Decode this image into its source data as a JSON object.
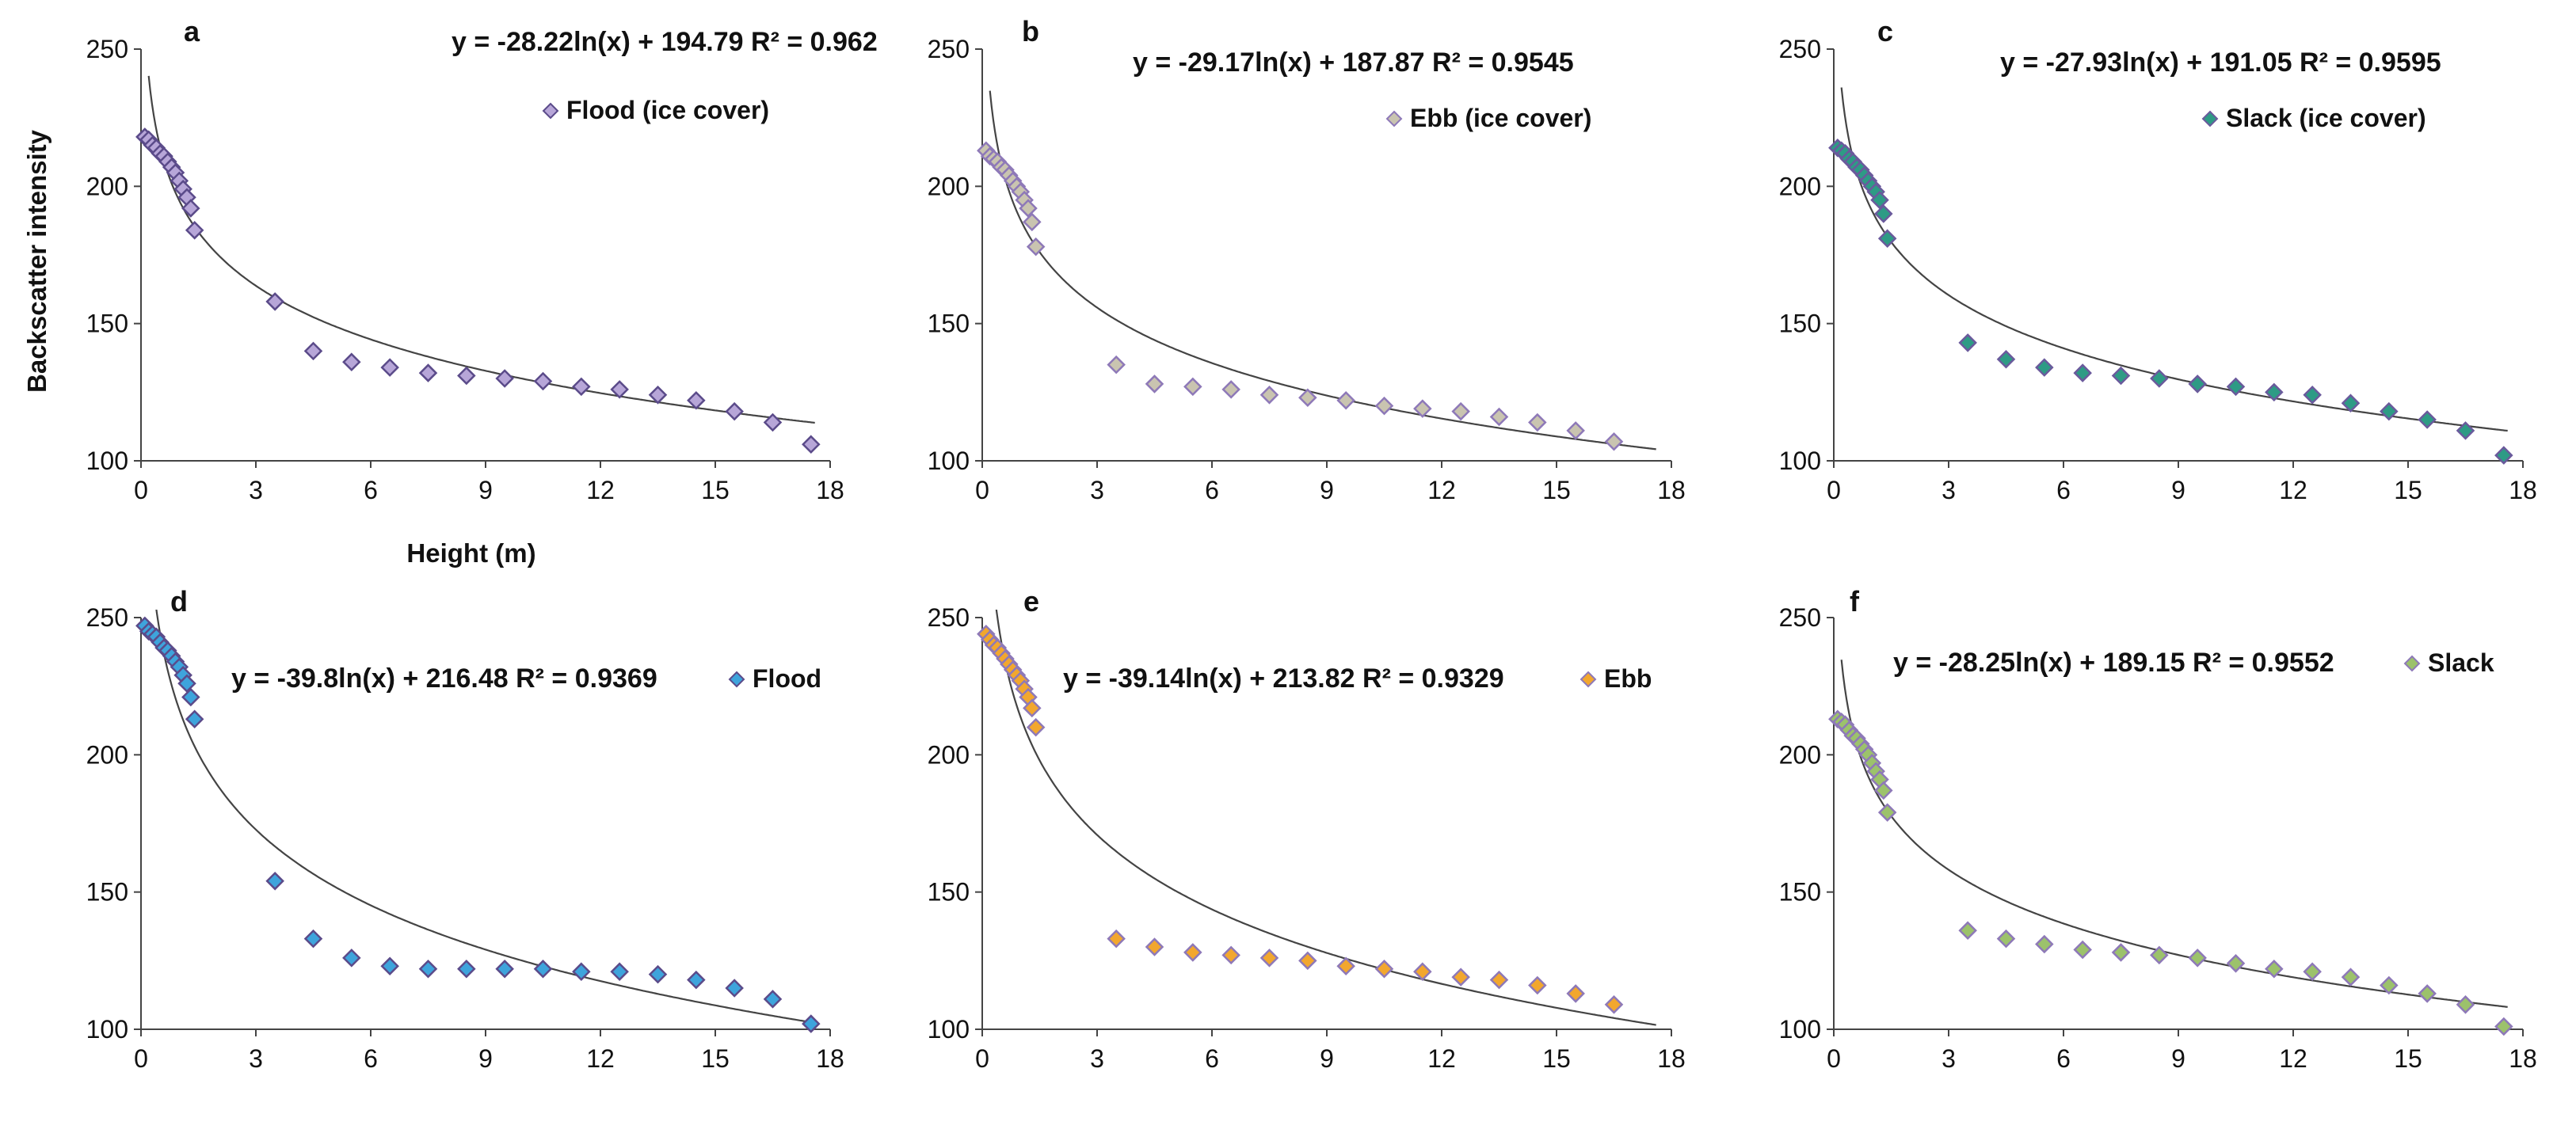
{
  "figure": {
    "xlabel": "Height  (m)",
    "ylabel": "Backscatter intensity"
  },
  "chart_data": [
    {
      "type": "scatter",
      "panel": "a",
      "equation": "y = -28.22ln(x) + 194.79  R² = 0.962",
      "fit": {
        "a": -28.22,
        "b": 194.79
      },
      "series": [
        {
          "name": "Flood (ice cover)",
          "fill": "#b7a6d8",
          "stroke": "#5b4b8a",
          "points": [
            [
              0.1,
              218
            ],
            [
              0.2,
              217
            ],
            [
              0.3,
              215
            ],
            [
              0.4,
              214
            ],
            [
              0.5,
              212
            ],
            [
              0.6,
              211
            ],
            [
              0.7,
              209
            ],
            [
              0.8,
              207
            ],
            [
              0.9,
              205
            ],
            [
              1.0,
              202
            ],
            [
              1.1,
              199
            ],
            [
              1.2,
              196
            ],
            [
              1.3,
              192
            ],
            [
              1.4,
              184
            ],
            [
              3.5,
              158
            ],
            [
              4.5,
              140
            ],
            [
              5.5,
              136
            ],
            [
              6.5,
              134
            ],
            [
              7.5,
              132
            ],
            [
              8.5,
              131
            ],
            [
              9.5,
              130
            ],
            [
              10.5,
              129
            ],
            [
              11.5,
              127
            ],
            [
              12.5,
              126
            ],
            [
              13.5,
              124
            ],
            [
              14.5,
              122
            ],
            [
              15.5,
              118
            ],
            [
              16.5,
              114
            ],
            [
              17.5,
              106
            ]
          ]
        }
      ],
      "xlim": [
        0,
        18
      ],
      "ylim": [
        100,
        250
      ],
      "xticks": [
        0,
        3,
        6,
        9,
        12,
        15,
        18
      ],
      "yticks": [
        100,
        150,
        200,
        250
      ],
      "xlabel": "Height  (m)",
      "ylabel": "Backscatter intensity"
    },
    {
      "type": "scatter",
      "panel": "b",
      "equation": "y = -29.17ln(x) + 187.87  R² = 0.9545",
      "fit": {
        "a": -29.17,
        "b": 187.87
      },
      "series": [
        {
          "name": "Ebb (ice cover)",
          "fill": "#c9c4b0",
          "stroke": "#8e79b8",
          "points": [
            [
              0.1,
              213
            ],
            [
              0.2,
              211
            ],
            [
              0.3,
              210
            ],
            [
              0.4,
              209
            ],
            [
              0.5,
              207
            ],
            [
              0.6,
              206
            ],
            [
              0.7,
              204
            ],
            [
              0.8,
              202
            ],
            [
              0.9,
              200
            ],
            [
              1.0,
              198
            ],
            [
              1.1,
              195
            ],
            [
              1.2,
              192
            ],
            [
              1.3,
              187
            ],
            [
              1.4,
              178
            ],
            [
              3.5,
              135
            ],
            [
              4.5,
              128
            ],
            [
              5.5,
              127
            ],
            [
              6.5,
              126
            ],
            [
              7.5,
              124
            ],
            [
              8.5,
              123
            ],
            [
              9.5,
              122
            ],
            [
              10.5,
              120
            ],
            [
              11.5,
              119
            ],
            [
              12.5,
              118
            ],
            [
              13.5,
              116
            ],
            [
              14.5,
              114
            ],
            [
              15.5,
              111
            ],
            [
              16.5,
              107
            ]
          ]
        }
      ],
      "xlim": [
        0,
        18
      ],
      "ylim": [
        100,
        250
      ],
      "xticks": [
        0,
        3,
        6,
        9,
        12,
        15,
        18
      ],
      "yticks": [
        100,
        150,
        200,
        250
      ]
    },
    {
      "type": "scatter",
      "panel": "c",
      "equation": "y = -27.93ln(x) + 191.05  R² = 0.9595",
      "fit": {
        "a": -27.93,
        "b": 191.05
      },
      "series": [
        {
          "name": "Slack (ice cover)",
          "fill": "#2e9b85",
          "stroke": "#6a5a9c",
          "points": [
            [
              0.1,
              214
            ],
            [
              0.2,
              213
            ],
            [
              0.3,
              212
            ],
            [
              0.4,
              210
            ],
            [
              0.5,
              209
            ],
            [
              0.6,
              207
            ],
            [
              0.7,
              206
            ],
            [
              0.8,
              204
            ],
            [
              0.9,
              202
            ],
            [
              1.0,
              200
            ],
            [
              1.1,
              198
            ],
            [
              1.2,
              195
            ],
            [
              1.3,
              190
            ],
            [
              1.4,
              181
            ],
            [
              3.5,
              143
            ],
            [
              4.5,
              137
            ],
            [
              5.5,
              134
            ],
            [
              6.5,
              132
            ],
            [
              7.5,
              131
            ],
            [
              8.5,
              130
            ],
            [
              9.5,
              128
            ],
            [
              10.5,
              127
            ],
            [
              11.5,
              125
            ],
            [
              12.5,
              124
            ],
            [
              13.5,
              121
            ],
            [
              14.5,
              118
            ],
            [
              15.5,
              115
            ],
            [
              16.5,
              111
            ],
            [
              17.5,
              102
            ]
          ]
        }
      ],
      "xlim": [
        0,
        18
      ],
      "ylim": [
        100,
        250
      ],
      "xticks": [
        0,
        3,
        6,
        9,
        12,
        15,
        18
      ],
      "yticks": [
        100,
        150,
        200,
        250
      ]
    },
    {
      "type": "scatter",
      "panel": "d",
      "equation": "y = -39.8ln(x) + 216.48  R² = 0.9369",
      "fit": {
        "a": -39.8,
        "b": 216.48
      },
      "series": [
        {
          "name": "Flood",
          "fill": "#3ea4dc",
          "stroke": "#5b4b8a",
          "points": [
            [
              0.1,
              247
            ],
            [
              0.2,
              245
            ],
            [
              0.3,
              244
            ],
            [
              0.4,
              243
            ],
            [
              0.5,
              241
            ],
            [
              0.6,
              239
            ],
            [
              0.7,
              238
            ],
            [
              0.8,
              236
            ],
            [
              0.9,
              234
            ],
            [
              1.0,
              232
            ],
            [
              1.1,
              229
            ],
            [
              1.2,
              226
            ],
            [
              1.3,
              221
            ],
            [
              1.4,
              213
            ],
            [
              3.5,
              154
            ],
            [
              4.5,
              133
            ],
            [
              5.5,
              126
            ],
            [
              6.5,
              123
            ],
            [
              7.5,
              122
            ],
            [
              8.5,
              122
            ],
            [
              9.5,
              122
            ],
            [
              10.5,
              122
            ],
            [
              11.5,
              121
            ],
            [
              12.5,
              121
            ],
            [
              13.5,
              120
            ],
            [
              14.5,
              118
            ],
            [
              15.5,
              115
            ],
            [
              16.5,
              111
            ],
            [
              17.5,
              102
            ]
          ]
        }
      ],
      "xlim": [
        0,
        18
      ],
      "ylim": [
        100,
        250
      ],
      "xticks": [
        0,
        3,
        6,
        9,
        12,
        15,
        18
      ],
      "yticks": [
        100,
        150,
        200,
        250
      ]
    },
    {
      "type": "scatter",
      "panel": "e",
      "equation": "y = -39.14ln(x) + 213.82  R² = 0.9329",
      "fit": {
        "a": -39.14,
        "b": 213.82
      },
      "series": [
        {
          "name": "Ebb",
          "fill": "#f2a72e",
          "stroke": "#8e79b8",
          "points": [
            [
              0.1,
              244
            ],
            [
              0.2,
              242
            ],
            [
              0.3,
              240
            ],
            [
              0.4,
              239
            ],
            [
              0.5,
              237
            ],
            [
              0.6,
              235
            ],
            [
              0.7,
              233
            ],
            [
              0.8,
              231
            ],
            [
              0.9,
              229
            ],
            [
              1.0,
              227
            ],
            [
              1.1,
              224
            ],
            [
              1.2,
              221
            ],
            [
              1.3,
              217
            ],
            [
              1.4,
              210
            ],
            [
              3.5,
              133
            ],
            [
              4.5,
              130
            ],
            [
              5.5,
              128
            ],
            [
              6.5,
              127
            ],
            [
              7.5,
              126
            ],
            [
              8.5,
              125
            ],
            [
              9.5,
              123
            ],
            [
              10.5,
              122
            ],
            [
              11.5,
              121
            ],
            [
              12.5,
              119
            ],
            [
              13.5,
              118
            ],
            [
              14.5,
              116
            ],
            [
              15.5,
              113
            ],
            [
              16.5,
              109
            ]
          ]
        }
      ],
      "xlim": [
        0,
        18
      ],
      "ylim": [
        100,
        250
      ],
      "xticks": [
        0,
        3,
        6,
        9,
        12,
        15,
        18
      ],
      "yticks": [
        100,
        150,
        200,
        250
      ]
    },
    {
      "type": "scatter",
      "panel": "f",
      "equation": "y = -28.25ln(x) + 189.15  R² = 0.9552",
      "fit": {
        "a": -28.25,
        "b": 189.15
      },
      "series": [
        {
          "name": "Slack",
          "fill": "#9cc26b",
          "stroke": "#8e79b8",
          "points": [
            [
              0.1,
              213
            ],
            [
              0.2,
              212
            ],
            [
              0.3,
              211
            ],
            [
              0.4,
              209
            ],
            [
              0.5,
              207
            ],
            [
              0.6,
              206
            ],
            [
              0.7,
              204
            ],
            [
              0.8,
              202
            ],
            [
              0.9,
              200
            ],
            [
              1.0,
              197
            ],
            [
              1.1,
              194
            ],
            [
              1.2,
              191
            ],
            [
              1.3,
              187
            ],
            [
              1.4,
              179
            ],
            [
              3.5,
              136
            ],
            [
              4.5,
              133
            ],
            [
              5.5,
              131
            ],
            [
              6.5,
              129
            ],
            [
              7.5,
              128
            ],
            [
              8.5,
              127
            ],
            [
              9.5,
              126
            ],
            [
              10.5,
              124
            ],
            [
              11.5,
              122
            ],
            [
              12.5,
              121
            ],
            [
              13.5,
              119
            ],
            [
              14.5,
              116
            ],
            [
              15.5,
              113
            ],
            [
              16.5,
              109
            ],
            [
              17.5,
              101
            ]
          ]
        }
      ],
      "xlim": [
        0,
        18
      ],
      "ylim": [
        100,
        250
      ],
      "xticks": [
        0,
        3,
        6,
        9,
        12,
        15,
        18
      ],
      "yticks": [
        100,
        150,
        200,
        250
      ]
    }
  ]
}
